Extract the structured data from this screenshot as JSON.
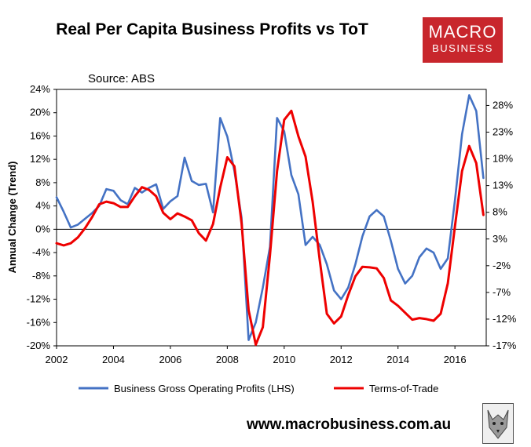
{
  "header": {
    "title": "Real Per Capita Business Profits vs ToT",
    "source": "Source: ABS"
  },
  "logo": {
    "line1": "MACRO",
    "line2": "BUSINESS"
  },
  "footer": {
    "website": "www.macrobusiness.com.au"
  },
  "colors": {
    "blue": "#4472c4",
    "red": "#ee0000",
    "logo": "#c8262c"
  },
  "chart_data": {
    "type": "line",
    "title": "Real Per Capita Business Profits vs ToT",
    "ylabel": "Annual Change (Trend)",
    "xlabel": "",
    "xlim": [
      2002,
      2017.1
    ],
    "ylim_left": [
      -20,
      24
    ],
    "ylim_right": [
      -17,
      31
    ],
    "x_ticks": [
      2002,
      2004,
      2006,
      2008,
      2010,
      2012,
      2014,
      2016
    ],
    "left_ticks": [
      24,
      20,
      16,
      12,
      8,
      4,
      0,
      -4,
      -8,
      -12,
      -16,
      -20
    ],
    "right_ticks": [
      28,
      23,
      18,
      13,
      8,
      3,
      -2,
      -7,
      -12,
      -17
    ],
    "left_tick_labels": [
      "24%",
      "20%",
      "16%",
      "12%",
      "8%",
      "4%",
      "0%",
      "-4%",
      "-8%",
      "-12%",
      "-16%",
      "-20%"
    ],
    "right_tick_labels": [
      "28%",
      "23%",
      "18%",
      "13%",
      "8%",
      "3%",
      "-2%",
      "-7%",
      "-12%",
      "-17%"
    ],
    "series": [
      {
        "name": "Business Gross Operating Profits (LHS)",
        "axis": "left",
        "color": "#4472c4",
        "x": [
          2002.0,
          2002.25,
          2002.5,
          2002.75,
          2003.0,
          2003.25,
          2003.5,
          2003.75,
          2004.0,
          2004.25,
          2004.5,
          2004.75,
          2005.0,
          2005.25,
          2005.5,
          2005.75,
          2006.0,
          2006.25,
          2006.5,
          2006.75,
          2007.0,
          2007.25,
          2007.5,
          2007.75,
          2008.0,
          2008.25,
          2008.5,
          2008.75,
          2009.0,
          2009.25,
          2009.5,
          2009.75,
          2010.0,
          2010.25,
          2010.5,
          2010.75,
          2011.0,
          2011.25,
          2011.5,
          2011.75,
          2012.0,
          2012.25,
          2012.5,
          2012.75,
          2013.0,
          2013.25,
          2013.5,
          2013.75,
          2014.0,
          2014.25,
          2014.5,
          2014.75,
          2015.0,
          2015.25,
          2015.5,
          2015.75,
          2016.0,
          2016.25,
          2016.5,
          2016.75,
          2017.0
        ],
        "values": [
          5.5,
          3.0,
          0.3,
          0.8,
          1.8,
          2.8,
          4.0,
          6.9,
          6.6,
          5.0,
          4.3,
          7.1,
          6.3,
          7.1,
          7.7,
          3.5,
          4.8,
          5.7,
          12.3,
          8.3,
          7.6,
          7.8,
          2.9,
          19.1,
          15.9,
          10.0,
          2.0,
          -19.0,
          -16.0,
          -10.0,
          -3.0,
          19.1,
          16.8,
          9.3,
          6.0,
          -2.7,
          -1.3,
          -2.7,
          -6.0,
          -10.5,
          -12.0,
          -10.0,
          -6.0,
          -1.2,
          2.2,
          3.3,
          2.2,
          -2.0,
          -6.8,
          -9.3,
          -8.0,
          -4.8,
          -3.3,
          -4.0,
          -6.8,
          -5.0,
          5.0,
          16.3,
          23.0,
          20.3,
          8.8
        ]
      },
      {
        "name": "Terms-of-Trade",
        "axis": "right",
        "color": "#ee0000",
        "x": [
          2002.0,
          2002.25,
          2002.5,
          2002.75,
          2003.0,
          2003.25,
          2003.5,
          2003.75,
          2004.0,
          2004.25,
          2004.5,
          2004.75,
          2005.0,
          2005.25,
          2005.5,
          2005.75,
          2006.0,
          2006.25,
          2006.5,
          2006.75,
          2007.0,
          2007.25,
          2007.5,
          2007.75,
          2008.0,
          2008.25,
          2008.5,
          2008.75,
          2009.0,
          2009.25,
          2009.5,
          2009.75,
          2010.0,
          2010.25,
          2010.5,
          2010.75,
          2011.0,
          2011.25,
          2011.5,
          2011.75,
          2012.0,
          2012.25,
          2012.5,
          2012.75,
          2013.0,
          2013.25,
          2013.5,
          2013.75,
          2014.0,
          2014.25,
          2014.5,
          2014.75,
          2015.0,
          2015.25,
          2015.5,
          2015.75,
          2016.0,
          2016.25,
          2016.5,
          2016.75,
          2017.0
        ],
        "values": [
          2.2,
          1.8,
          2.2,
          3.3,
          5.0,
          7.1,
          9.5,
          10.0,
          9.7,
          9.0,
          9.0,
          11.0,
          12.7,
          12.2,
          11.0,
          7.9,
          6.7,
          7.8,
          7.2,
          6.5,
          4.1,
          2.7,
          5.8,
          12.6,
          18.3,
          16.6,
          6.0,
          -10.3,
          -16.8,
          -13.5,
          0.0,
          15.7,
          25.3,
          27.0,
          22.2,
          18.4,
          10.0,
          -1.0,
          -11.0,
          -12.8,
          -11.5,
          -7.5,
          -4.0,
          -2.2,
          -2.3,
          -2.5,
          -4.3,
          -8.5,
          -9.5,
          -10.8,
          -12.1,
          -11.8,
          -12.0,
          -12.3,
          -11.0,
          -5.3,
          5.4,
          15.7,
          20.4,
          17.2,
          7.5
        ]
      }
    ]
  }
}
